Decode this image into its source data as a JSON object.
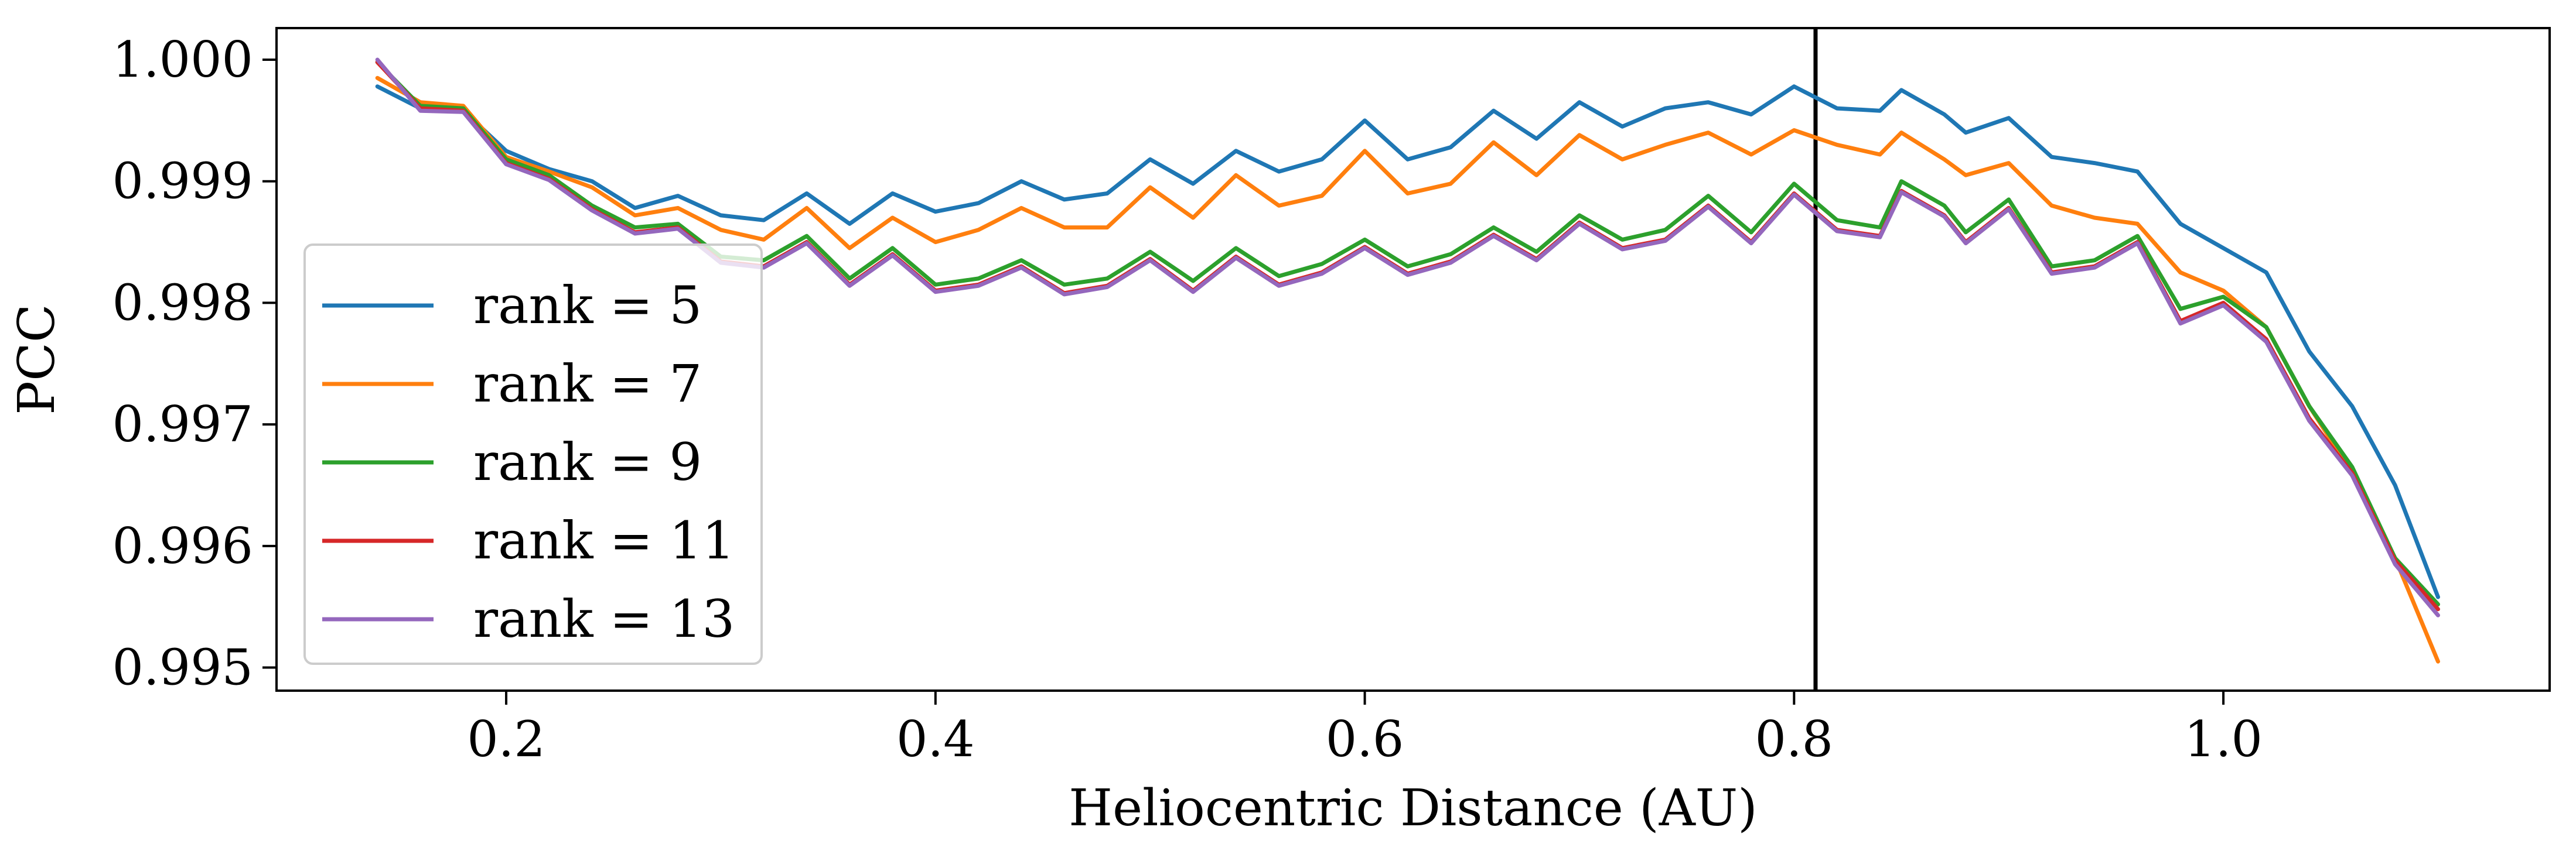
{
  "chart_data": {
    "type": "line",
    "title": "",
    "xlabel": "Heliocentric Distance (AU)",
    "ylabel": "PCC",
    "xlim": [
      0.093,
      1.152
    ],
    "ylim": [
      0.99481,
      1.00026
    ],
    "xticks": [
      "0.2",
      "0.4",
      "0.6",
      "0.8",
      "1.0"
    ],
    "yticks": [
      "0.995",
      "0.996",
      "0.997",
      "0.998",
      "0.999",
      "1.000"
    ],
    "grid": false,
    "legend_position": "lower-left",
    "vline": {
      "x": 0.81,
      "color": "#000000"
    },
    "series": [
      {
        "name": "rank = 5",
        "color": "#1f77b4",
        "x": [
          0.14,
          0.16,
          0.18,
          0.2,
          0.22,
          0.24,
          0.26,
          0.28,
          0.3,
          0.32,
          0.34,
          0.36,
          0.38,
          0.4,
          0.42,
          0.44,
          0.46,
          0.48,
          0.5,
          0.52,
          0.54,
          0.56,
          0.58,
          0.6,
          0.62,
          0.64,
          0.66,
          0.68,
          0.7,
          0.72,
          0.74,
          0.76,
          0.78,
          0.8,
          0.82,
          0.84,
          0.85,
          0.87,
          0.88,
          0.9,
          0.92,
          0.94,
          0.96,
          0.98,
          1.0,
          1.02,
          1.04,
          1.06,
          1.08,
          1.1
        ],
        "y": [
          0.99978,
          0.9996,
          0.99958,
          0.99925,
          0.9991,
          0.999,
          0.99878,
          0.99888,
          0.99872,
          0.99868,
          0.9989,
          0.99865,
          0.9989,
          0.99875,
          0.99882,
          0.999,
          0.99885,
          0.9989,
          0.99918,
          0.99898,
          0.99925,
          0.99908,
          0.99918,
          0.9995,
          0.99918,
          0.99928,
          0.99958,
          0.99935,
          0.99965,
          0.99945,
          0.9996,
          0.99965,
          0.99955,
          0.99978,
          0.9996,
          0.99958,
          0.99975,
          0.99955,
          0.9994,
          0.99952,
          0.9992,
          0.99915,
          0.99908,
          0.99865,
          0.99845,
          0.99825,
          0.9976,
          0.99715,
          0.9965,
          0.99558
        ]
      },
      {
        "name": "rank = 7",
        "color": "#ff7f0e",
        "x": [
          0.14,
          0.16,
          0.18,
          0.2,
          0.22,
          0.24,
          0.26,
          0.28,
          0.3,
          0.32,
          0.34,
          0.36,
          0.38,
          0.4,
          0.42,
          0.44,
          0.46,
          0.48,
          0.5,
          0.52,
          0.54,
          0.56,
          0.58,
          0.6,
          0.62,
          0.64,
          0.66,
          0.68,
          0.7,
          0.72,
          0.74,
          0.76,
          0.78,
          0.8,
          0.82,
          0.84,
          0.85,
          0.87,
          0.88,
          0.9,
          0.92,
          0.94,
          0.96,
          0.98,
          1.0,
          1.02,
          1.04,
          1.06,
          1.08,
          1.1
        ],
        "y": [
          0.99985,
          0.99965,
          0.99962,
          0.9992,
          0.99908,
          0.99895,
          0.99872,
          0.99878,
          0.9986,
          0.99852,
          0.99878,
          0.99845,
          0.9987,
          0.9985,
          0.9986,
          0.99878,
          0.99862,
          0.99862,
          0.99895,
          0.9987,
          0.99905,
          0.9988,
          0.99888,
          0.99925,
          0.9989,
          0.99898,
          0.99932,
          0.99905,
          0.99938,
          0.99918,
          0.9993,
          0.9994,
          0.99922,
          0.99942,
          0.9993,
          0.99922,
          0.9994,
          0.99918,
          0.99905,
          0.99915,
          0.9988,
          0.9987,
          0.99865,
          0.99825,
          0.9981,
          0.9978,
          0.99715,
          0.9966,
          0.9959,
          0.99505
        ]
      },
      {
        "name": "rank = 9",
        "color": "#2ca02c",
        "x": [
          0.14,
          0.16,
          0.18,
          0.2,
          0.22,
          0.24,
          0.26,
          0.28,
          0.3,
          0.32,
          0.34,
          0.36,
          0.38,
          0.4,
          0.42,
          0.44,
          0.46,
          0.48,
          0.5,
          0.52,
          0.54,
          0.56,
          0.58,
          0.6,
          0.62,
          0.64,
          0.66,
          0.68,
          0.7,
          0.72,
          0.74,
          0.76,
          0.78,
          0.8,
          0.82,
          0.84,
          0.85,
          0.87,
          0.88,
          0.9,
          0.92,
          0.94,
          0.96,
          0.98,
          1.0,
          1.02,
          1.04,
          1.06,
          1.08,
          1.1
        ],
        "y": [
          0.99998,
          0.99962,
          0.9996,
          0.99918,
          0.99905,
          0.9988,
          0.99862,
          0.99865,
          0.99838,
          0.99835,
          0.99855,
          0.9982,
          0.99845,
          0.99815,
          0.9982,
          0.99835,
          0.99815,
          0.9982,
          0.99842,
          0.99818,
          0.99845,
          0.99822,
          0.99832,
          0.99852,
          0.9983,
          0.9984,
          0.99862,
          0.99842,
          0.99872,
          0.99852,
          0.9986,
          0.99888,
          0.99858,
          0.99898,
          0.99868,
          0.99862,
          0.999,
          0.9988,
          0.99858,
          0.99885,
          0.9983,
          0.99835,
          0.99855,
          0.99795,
          0.99805,
          0.9978,
          0.99715,
          0.99665,
          0.9959,
          0.99552
        ]
      },
      {
        "name": "rank = 11",
        "color": "#d62728",
        "x": [
          0.14,
          0.16,
          0.18,
          0.2,
          0.22,
          0.24,
          0.26,
          0.28,
          0.3,
          0.32,
          0.34,
          0.36,
          0.38,
          0.4,
          0.42,
          0.44,
          0.46,
          0.48,
          0.5,
          0.52,
          0.54,
          0.56,
          0.58,
          0.6,
          0.62,
          0.64,
          0.66,
          0.68,
          0.7,
          0.72,
          0.74,
          0.76,
          0.78,
          0.8,
          0.82,
          0.84,
          0.85,
          0.87,
          0.88,
          0.9,
          0.92,
          0.94,
          0.96,
          0.98,
          1.0,
          1.02,
          1.04,
          1.06,
          1.08,
          1.1
        ],
        "y": [
          0.99998,
          0.9996,
          0.99958,
          0.99915,
          0.99902,
          0.99877,
          0.99858,
          0.99862,
          0.99834,
          0.9983,
          0.9985,
          0.99815,
          0.9984,
          0.9981,
          0.99815,
          0.9983,
          0.99808,
          0.99814,
          0.99836,
          0.9981,
          0.99838,
          0.99815,
          0.99825,
          0.99846,
          0.99824,
          0.99834,
          0.99856,
          0.99836,
          0.99866,
          0.99845,
          0.99852,
          0.9988,
          0.9985,
          0.9989,
          0.9986,
          0.99855,
          0.99892,
          0.99872,
          0.9985,
          0.99878,
          0.99825,
          0.9983,
          0.9985,
          0.99785,
          0.998,
          0.9977,
          0.99705,
          0.9966,
          0.99588,
          0.99548
        ]
      },
      {
        "name": "rank = 13",
        "color": "#9467bd",
        "x": [
          0.14,
          0.16,
          0.18,
          0.2,
          0.22,
          0.24,
          0.26,
          0.28,
          0.3,
          0.32,
          0.34,
          0.36,
          0.38,
          0.4,
          0.42,
          0.44,
          0.46,
          0.48,
          0.5,
          0.52,
          0.54,
          0.56,
          0.58,
          0.6,
          0.62,
          0.64,
          0.66,
          0.68,
          0.7,
          0.72,
          0.74,
          0.76,
          0.78,
          0.8,
          0.82,
          0.84,
          0.85,
          0.87,
          0.88,
          0.9,
          0.92,
          0.94,
          0.96,
          0.98,
          1.0,
          1.02,
          1.04,
          1.06,
          1.08,
          1.1
        ],
        "y": [
          1.0,
          0.99958,
          0.99957,
          0.99914,
          0.99901,
          0.99876,
          0.99857,
          0.99861,
          0.99833,
          0.99829,
          0.99849,
          0.99814,
          0.99839,
          0.99809,
          0.99814,
          0.99829,
          0.99807,
          0.99813,
          0.99835,
          0.99809,
          0.99837,
          0.99814,
          0.99824,
          0.99845,
          0.99823,
          0.99833,
          0.99855,
          0.99835,
          0.99865,
          0.99844,
          0.99851,
          0.99879,
          0.99849,
          0.99889,
          0.99859,
          0.99854,
          0.99891,
          0.99871,
          0.99849,
          0.99877,
          0.99824,
          0.99829,
          0.99849,
          0.99783,
          0.99798,
          0.99768,
          0.99703,
          0.99658,
          0.99585,
          0.99543
        ]
      }
    ]
  }
}
